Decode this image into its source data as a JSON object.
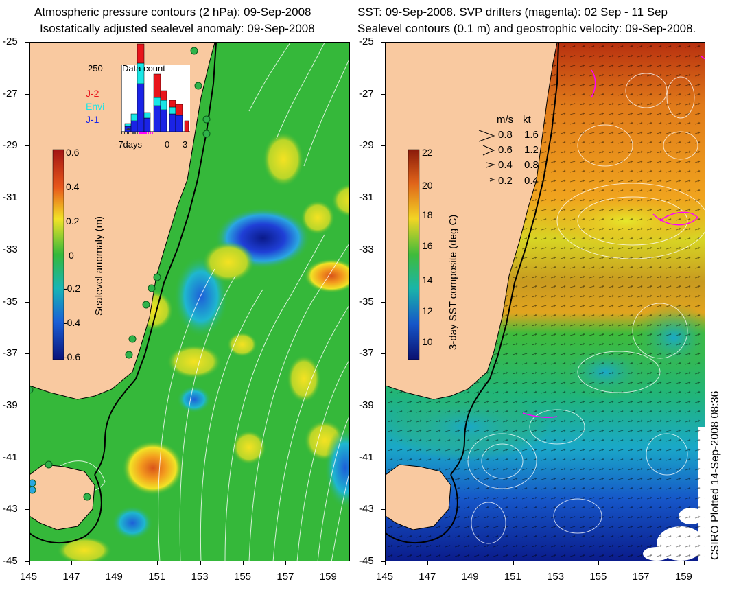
{
  "left_panel": {
    "title_line1": "Atmospheric pressure contours (2 hPa): 09-Sep-2008",
    "title_line2": "Isostatically adjusted sealevel anomaly: 09-Sep-2008",
    "colorbar": {
      "title": "Sealevel anomaly (m)",
      "ticks": [
        "0.6",
        "0.4",
        "0.2",
        "0",
        "-0.2",
        "-0.4",
        "-0.6"
      ]
    },
    "inset": {
      "title": "Data count",
      "ymax_label": "250",
      "series": [
        {
          "name": "J-2",
          "color": "#e8141b"
        },
        {
          "name": "Envi",
          "color": "#19e6e6"
        },
        {
          "name": "J-1",
          "color": "#1a23e6"
        }
      ],
      "x_ticks": [
        "-7days",
        "0",
        "3"
      ]
    }
  },
  "right_panel": {
    "title_line1": "SST: 09-Sep-2008. SVP drifters (magenta): 02 Sep - 11 Sep",
    "title_line2": "Sealevel contours (0.1 m) and geostrophic velocity: 09-Sep-2008.",
    "colorbar": {
      "title": "3-day SST composite (deg C)",
      "ticks": [
        "22",
        "20",
        "18",
        "16",
        "14",
        "12",
        "10"
      ]
    },
    "velocity_legend": {
      "header_ms": "m/s",
      "header_kt": "kt",
      "rows": [
        {
          "ms": "0.8",
          "kt": "1.6"
        },
        {
          "ms": "0.6",
          "kt": "1.2"
        },
        {
          "ms": "0.4",
          "kt": "0.8"
        },
        {
          "ms": "0.2",
          "kt": "0.4"
        }
      ]
    }
  },
  "axes": {
    "y_ticks": [
      "-25",
      "-27",
      "-29",
      "-31",
      "-33",
      "-35",
      "-37",
      "-39",
      "-41",
      "-43",
      "-45"
    ],
    "x_ticks": [
      "145",
      "147",
      "149",
      "151",
      "153",
      "155",
      "157",
      "159"
    ]
  },
  "stamp": "CSIRO Plotted 14-Sep-2008 08:36",
  "colors": {
    "land": "#f9c9a0",
    "ocean_green": "#35b83a",
    "coast": "#000000",
    "drifter": "#ff00ff"
  }
}
